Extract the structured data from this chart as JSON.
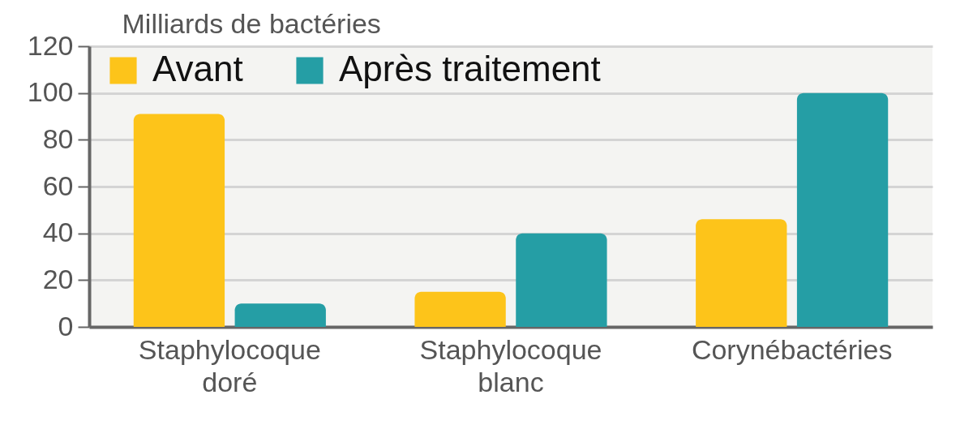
{
  "chart_data": {
    "type": "bar",
    "ylabel": "Milliards de bactéries",
    "categories": [
      "Staphylocoque doré",
      "Staphylocoque blanc",
      "Corynébactéries"
    ],
    "series": [
      {
        "name": "Avant",
        "color": "#fdc41a",
        "values": [
          91,
          15,
          46
        ]
      },
      {
        "name": "Après traitement",
        "color": "#259ea5",
        "values": [
          10,
          40,
          100
        ]
      }
    ],
    "ylim": [
      0,
      120
    ],
    "yticks": [
      0,
      20,
      40,
      60,
      80,
      100,
      120
    ],
    "grid": "y",
    "legend": "top left"
  }
}
